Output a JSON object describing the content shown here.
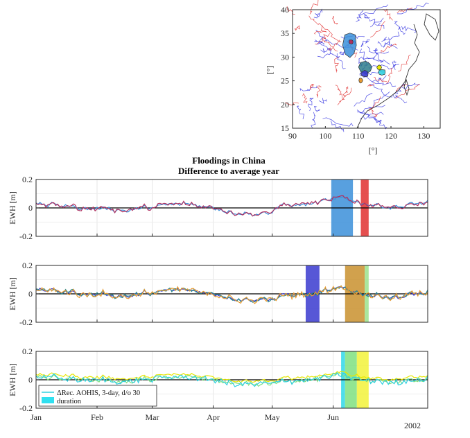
{
  "map": {
    "xlabel": "[°]",
    "ylabel": "[°]",
    "xticks": [
      90,
      100,
      110,
      120,
      130
    ],
    "yticks": [
      15,
      20,
      25,
      30,
      35,
      40
    ],
    "xlim": [
      90,
      135
    ],
    "ylim": [
      15,
      40
    ],
    "regions": [
      {
        "color": "#3b8fd9",
        "center": [
          107.5,
          32.5
        ]
      },
      {
        "color": "#b03060",
        "center": [
          107.8,
          33.2
        ]
      },
      {
        "color": "#2e7d8c",
        "center": [
          112.3,
          27.9
        ]
      },
      {
        "color": "#3a3acf",
        "center": [
          112.0,
          26.5
        ]
      },
      {
        "color": "#e69a30",
        "center": [
          110.8,
          25.1
        ]
      },
      {
        "color": "#e6e600",
        "center": [
          116.4,
          27.8
        ]
      },
      {
        "color": "#30d0e0",
        "center": [
          117.2,
          26.8
        ]
      }
    ]
  },
  "chart_data": {
    "type": "line",
    "title": "Floodings in China",
    "subtitle": "Difference to average year",
    "ylabel": "EWH [m]",
    "ylim": [
      -0.2,
      0.2
    ],
    "yticks": [
      "0.2",
      "0",
      "-0.2"
    ],
    "x_categories": [
      "Jan",
      "Feb",
      "Mar",
      "Apr",
      "May",
      "Jun"
    ],
    "x_extra_label": "2002",
    "xlim_days": [
      1,
      200
    ],
    "panels": [
      {
        "series_colors": [
          "#3b8fd9",
          "#b03060"
        ],
        "events": [
          {
            "start_day": 151,
            "end_day": 162,
            "color": "#3b8fd9"
          },
          {
            "start_day": 166,
            "end_day": 170,
            "color": "#e03030"
          }
        ]
      },
      {
        "series_colors": [
          "#3a3acf",
          "#2e8b8b",
          "#e69a30"
        ],
        "events": [
          {
            "start_day": 138,
            "end_day": 145,
            "color": "#3a3acf"
          },
          {
            "start_day": 158,
            "end_day": 168,
            "color": "#c9902e"
          },
          {
            "start_day": 168,
            "end_day": 170,
            "color": "#9be38d"
          }
        ]
      },
      {
        "series_colors": [
          "#e6e600",
          "#7fe07f",
          "#30d0e0"
        ],
        "events": [
          {
            "start_day": 156,
            "end_day": 158,
            "color": "#30d8e8"
          },
          {
            "start_day": 158,
            "end_day": 164,
            "color": "#7fe07f"
          },
          {
            "start_day": 164,
            "end_day": 170,
            "color": "#f2f23a"
          }
        ],
        "legend": [
          {
            "label": "ΔRec. AOHIS, 3-day, d/o 30",
            "kind": "line",
            "color": "#30d0e0"
          },
          {
            "label": "duration",
            "kind": "patch",
            "color": "#30e0f0"
          }
        ]
      }
    ]
  }
}
